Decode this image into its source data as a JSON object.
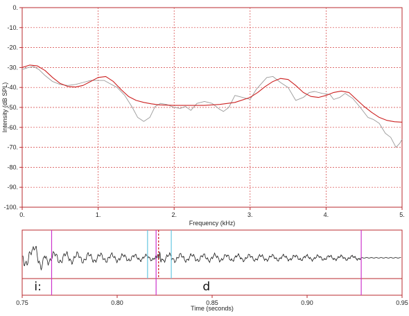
{
  "chart_data": [
    {
      "type": "line",
      "xlabel": "Frequency (kHz)",
      "ylabel": "Intensity (dB SPL)",
      "xlim": [
        0,
        5
      ],
      "ylim": [
        -100,
        0
      ],
      "x_ticks": [
        "0.",
        "1.",
        "2.",
        "3.",
        "4.",
        "5."
      ],
      "y_ticks": [
        "0.",
        "-10.",
        "-20.",
        "-30.",
        "-40.",
        "-50.",
        "-60.",
        "-70.",
        "-80.",
        "-90.",
        "-100."
      ],
      "grid": true,
      "series": [
        {
          "color": "#999999",
          "x": [
            0,
            0.08,
            0.15,
            0.22,
            0.3,
            0.4,
            0.5,
            0.6,
            0.7,
            0.8,
            0.9,
            1.0,
            1.08,
            1.15,
            1.25,
            1.35,
            1.45,
            1.52,
            1.6,
            1.68,
            1.75,
            1.82,
            1.9,
            2.0,
            2.08,
            2.15,
            2.22,
            2.3,
            2.4,
            2.5,
            2.6,
            2.65,
            2.72,
            2.8,
            2.9,
            3.0,
            3.08,
            3.15,
            3.22,
            3.3,
            3.4,
            3.5,
            3.6,
            3.7,
            3.78,
            3.85,
            3.95,
            4.05,
            4.1,
            4.18,
            4.25,
            4.35,
            4.45,
            4.55,
            4.62,
            4.7,
            4.78,
            4.85,
            4.92,
            4.97,
            5.0
          ],
          "y": [
            -31,
            -30,
            -29.5,
            -31,
            -34,
            -37,
            -38.5,
            -39,
            -38.5,
            -37.5,
            -36.5,
            -36.5,
            -36.5,
            -38,
            -40,
            -44,
            -50,
            -55,
            -57,
            -55,
            -49.5,
            -48,
            -48.5,
            -50,
            -50.5,
            -49.5,
            -51.5,
            -48,
            -47,
            -48,
            -51,
            -52,
            -50,
            -44,
            -45,
            -46,
            -41,
            -38,
            -35,
            -34.5,
            -37.5,
            -40,
            -46.5,
            -45,
            -42.5,
            -42,
            -43,
            -43.5,
            -46,
            -45,
            -43,
            -45.5,
            -50,
            -55,
            -56,
            -58,
            -63,
            -65,
            -70,
            -68,
            -66
          ]
        },
        {
          "color": "#cc1f1f",
          "x": [
            0,
            0.1,
            0.2,
            0.3,
            0.4,
            0.5,
            0.6,
            0.7,
            0.8,
            0.9,
            1.0,
            1.1,
            1.2,
            1.3,
            1.4,
            1.5,
            1.6,
            1.7,
            1.8,
            2.0,
            2.2,
            2.4,
            2.6,
            2.8,
            3.0,
            3.1,
            3.2,
            3.3,
            3.4,
            3.5,
            3.6,
            3.7,
            3.8,
            3.9,
            4.0,
            4.1,
            4.2,
            4.3,
            4.4,
            4.5,
            4.6,
            4.7,
            4.8,
            4.9,
            5.0
          ],
          "y": [
            -30,
            -28.8,
            -29.2,
            -31.5,
            -35,
            -38,
            -39.5,
            -39.8,
            -39,
            -37,
            -35,
            -34.5,
            -37,
            -41,
            -44.5,
            -46.5,
            -47.5,
            -48.2,
            -48.7,
            -49,
            -49,
            -49,
            -48.5,
            -47.5,
            -45,
            -42.5,
            -39.5,
            -37,
            -35.5,
            -36,
            -39,
            -42.5,
            -44.5,
            -45,
            -44,
            -42.5,
            -41.8,
            -42.5,
            -46,
            -49.5,
            -52.5,
            -55,
            -56.5,
            -57.2,
            -57.4
          ]
        }
      ]
    },
    {
      "type": "line",
      "xlabel": "Time (seconds)",
      "xlim": [
        0.75,
        0.95
      ],
      "x_ticks": [
        "0.75",
        "0.80",
        "0.85",
        "0.90",
        "0.95"
      ],
      "segments": [
        {
          "label": "i:",
          "start": 0.751,
          "end": 0.7655
        },
        {
          "label": "d",
          "start": 0.7655,
          "end": 0.9285
        }
      ],
      "markers": [
        {
          "time": 0.7655,
          "color": "#cc33cc"
        },
        {
          "time": 0.816,
          "color": "#66c6e0"
        },
        {
          "time": 0.8205,
          "color": "#cc33cc"
        },
        {
          "time": 0.8218,
          "color": "#cc1f1f"
        },
        {
          "time": 0.8285,
          "color": "#66c6e0"
        },
        {
          "time": 0.9285,
          "color": "#cc33cc"
        }
      ]
    }
  ]
}
